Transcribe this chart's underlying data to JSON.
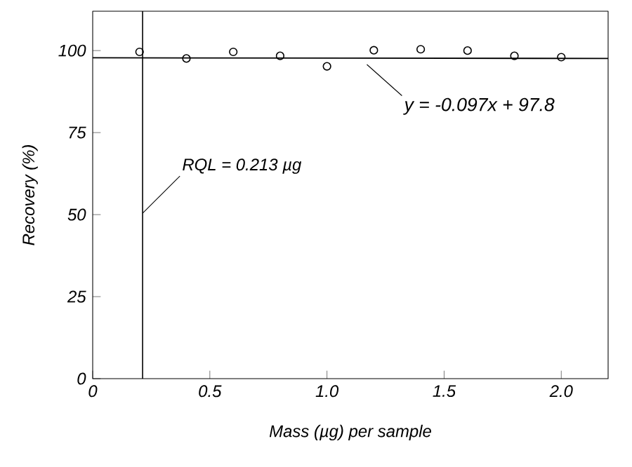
{
  "chart_data": {
    "type": "scatter",
    "xlabel": "Mass (µg) per sample",
    "ylabel": "Recovery (%)",
    "x": [
      0.2,
      0.4,
      0.6,
      0.8,
      1.0,
      1.2,
      1.4,
      1.6,
      1.8,
      2.0
    ],
    "series": [
      {
        "color": "#000000",
        "values": [
          99.6,
          97.6,
          99.6,
          98.4,
          95.2,
          100.1,
          100.4,
          100.0,
          98.4,
          98.0
        ]
      },
      {
        "type": "line",
        "color": "#000000",
        "marker": "none",
        "x": [
          0,
          2.2
        ],
        "values": [
          97.8,
          97.6
        ]
      }
    ],
    "marker": "circle",
    "xlim": [
      0,
      2.2
    ],
    "ylim": [
      0,
      112
    ],
    "xticks": [
      0,
      {
        "value": 0.5,
        "label": "0.5"
      },
      {
        "value": 1.0,
        "label": "1.0"
      },
      {
        "value": 1.5,
        "label": "1.5"
      },
      {
        "value": 2.0,
        "label": "2.0"
      }
    ],
    "yticks": [
      0,
      25,
      50,
      75,
      100
    ],
    "ref_lines": [
      {
        "axis": "x",
        "value": 0.213,
        "label": "RQL = 0.213 µg",
        "color": "#000000"
      }
    ],
    "annotations": [
      "y = -0.097x + 97.8"
    ]
  }
}
